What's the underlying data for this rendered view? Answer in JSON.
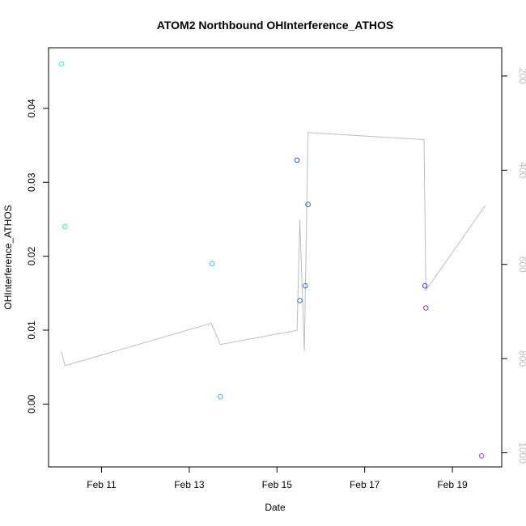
{
  "chart_data": {
    "type": "scatter",
    "title": "ATOM2 Northbound OHInterference_ATHOS",
    "xlabel": "Date",
    "ylabel": "OHInterference_ATHOS",
    "x_axis": {
      "type": "date",
      "range": [
        "2017-02-09 19:00",
        "2017-02-20 03:00"
      ],
      "ticks": [
        {
          "value": "2017-02-11 00:00",
          "label": "Feb 11"
        },
        {
          "value": "2017-02-13 00:00",
          "label": "Feb 13"
        },
        {
          "value": "2017-02-15 00:00",
          "label": "Feb 15"
        },
        {
          "value": "2017-02-17 00:00",
          "label": "Feb 17"
        },
        {
          "value": "2017-02-19 00:00",
          "label": "Feb 19"
        }
      ]
    },
    "y_axis": {
      "range": [
        -0.0085,
        0.0482
      ],
      "ticks": [
        {
          "value": 0.0,
          "label": "0.00"
        },
        {
          "value": 0.01,
          "label": "0.01"
        },
        {
          "value": 0.02,
          "label": "0.02"
        },
        {
          "value": 0.03,
          "label": "0.03"
        },
        {
          "value": 0.04,
          "label": "0.04"
        }
      ]
    },
    "y2_axis": {
      "reversed": true,
      "range": [
        1030,
        140
      ],
      "ticks": [
        {
          "value": 200,
          "label": "200"
        },
        {
          "value": 400,
          "label": "400"
        },
        {
          "value": 600,
          "label": "600"
        },
        {
          "value": 800,
          "label": "800"
        },
        {
          "value": 1000,
          "label": "1000"
        }
      ],
      "color": "#bdbdbd"
    },
    "points": [
      {
        "x": "2017-02-10 02:00",
        "y": 0.046,
        "color": "#33ffaa"
      },
      {
        "x": "2017-02-10 04:00",
        "y": 0.024,
        "color": "#33ee99"
      },
      {
        "x": "2017-02-13 12:30",
        "y": 0.019,
        "color": "#33ccee"
      },
      {
        "x": "2017-02-13 17:00",
        "y": 0.001,
        "color": "#33bbee"
      },
      {
        "x": "2017-02-15 11:00",
        "y": 0.033,
        "color": "#3355dd"
      },
      {
        "x": "2017-02-15 12:30",
        "y": 0.014,
        "color": "#3366dd"
      },
      {
        "x": "2017-02-15 15:30",
        "y": 0.016,
        "color": "#3377ee"
      },
      {
        "x": "2017-02-15 17:00",
        "y": 0.027,
        "color": "#3366dd"
      },
      {
        "x": "2017-02-18 09:00",
        "y": 0.016,
        "color": "#6633dd"
      },
      {
        "x": "2017-02-18 09:30",
        "y": 0.013,
        "color": "#7733ee"
      },
      {
        "x": "2017-02-19 16:00",
        "y": -0.007,
        "color": "#cc33dd"
      }
    ],
    "line_series": {
      "axis": "y2",
      "color": "#bdbdbd",
      "points": [
        {
          "x": "2017-02-10 02:00",
          "y": 785
        },
        {
          "x": "2017-02-10 04:00",
          "y": 815
        },
        {
          "x": "2017-02-13 12:00",
          "y": 725
        },
        {
          "x": "2017-02-13 17:00",
          "y": 770
        },
        {
          "x": "2017-02-15 11:00",
          "y": 740
        },
        {
          "x": "2017-02-15 12:30",
          "y": 505
        },
        {
          "x": "2017-02-15 15:00",
          "y": 785
        },
        {
          "x": "2017-02-15 17:00",
          "y": 320
        },
        {
          "x": "2017-02-18 08:30",
          "y": 335
        },
        {
          "x": "2017-02-18 09:30",
          "y": 655
        },
        {
          "x": "2017-02-19 18:00",
          "y": 475
        }
      ]
    },
    "grid": false,
    "legend": "none"
  }
}
